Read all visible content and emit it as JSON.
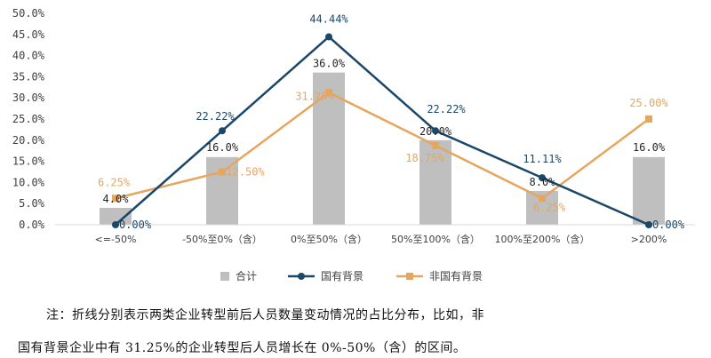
{
  "chart_data": {
    "type": "bar+line",
    "categories": [
      "<=-50%",
      "-50%至0%（含）",
      "0%至50%（含）",
      "50%至100%（含）",
      "100%至200%（含）",
      ">200%"
    ],
    "series": [
      {
        "name": "合计",
        "type": "bar",
        "values": [
          4.0,
          16.0,
          36.0,
          20.0,
          8.0,
          16.0
        ],
        "labels": [
          "4.0%",
          "16.0%",
          "36.0%",
          "20.0%",
          "8.0%",
          "16.0%"
        ]
      },
      {
        "name": "国有背景",
        "type": "line",
        "values": [
          0.0,
          22.22,
          44.44,
          22.22,
          11.11,
          0.0
        ],
        "labels": [
          "0.00%",
          "22.22%",
          "44.44%",
          "22.22%",
          "11.11%",
          "0.00%"
        ]
      },
      {
        "name": "非国有背景",
        "type": "line",
        "values": [
          6.25,
          12.5,
          31.25,
          18.75,
          6.25,
          25.0
        ],
        "labels": [
          "6.25%",
          "12.50%",
          "31.25%",
          "18.75%",
          "6.25%",
          "25.00%"
        ]
      }
    ],
    "yticks": [
      "0.0%",
      "5.0%",
      "10.0%",
      "15.0%",
      "20.0%",
      "25.0%",
      "30.0%",
      "35.0%",
      "40.0%",
      "45.0%",
      "50.0%"
    ],
    "ylim": [
      0,
      50
    ],
    "grid": false,
    "legend": "bottom",
    "colors": {
      "bar": "#bfbfbf",
      "navy": "#1b4769",
      "orange": "#e5a660",
      "axis": "#d9d9d9"
    }
  },
  "note": {
    "line1": "注：折线分别表示两类企业转型前后人员数量变动情况的占比分布，比如，非",
    "line2": "国有背景企业中有 31.25%的企业转型后人员增长在 0%-50%（含）的区间。"
  }
}
